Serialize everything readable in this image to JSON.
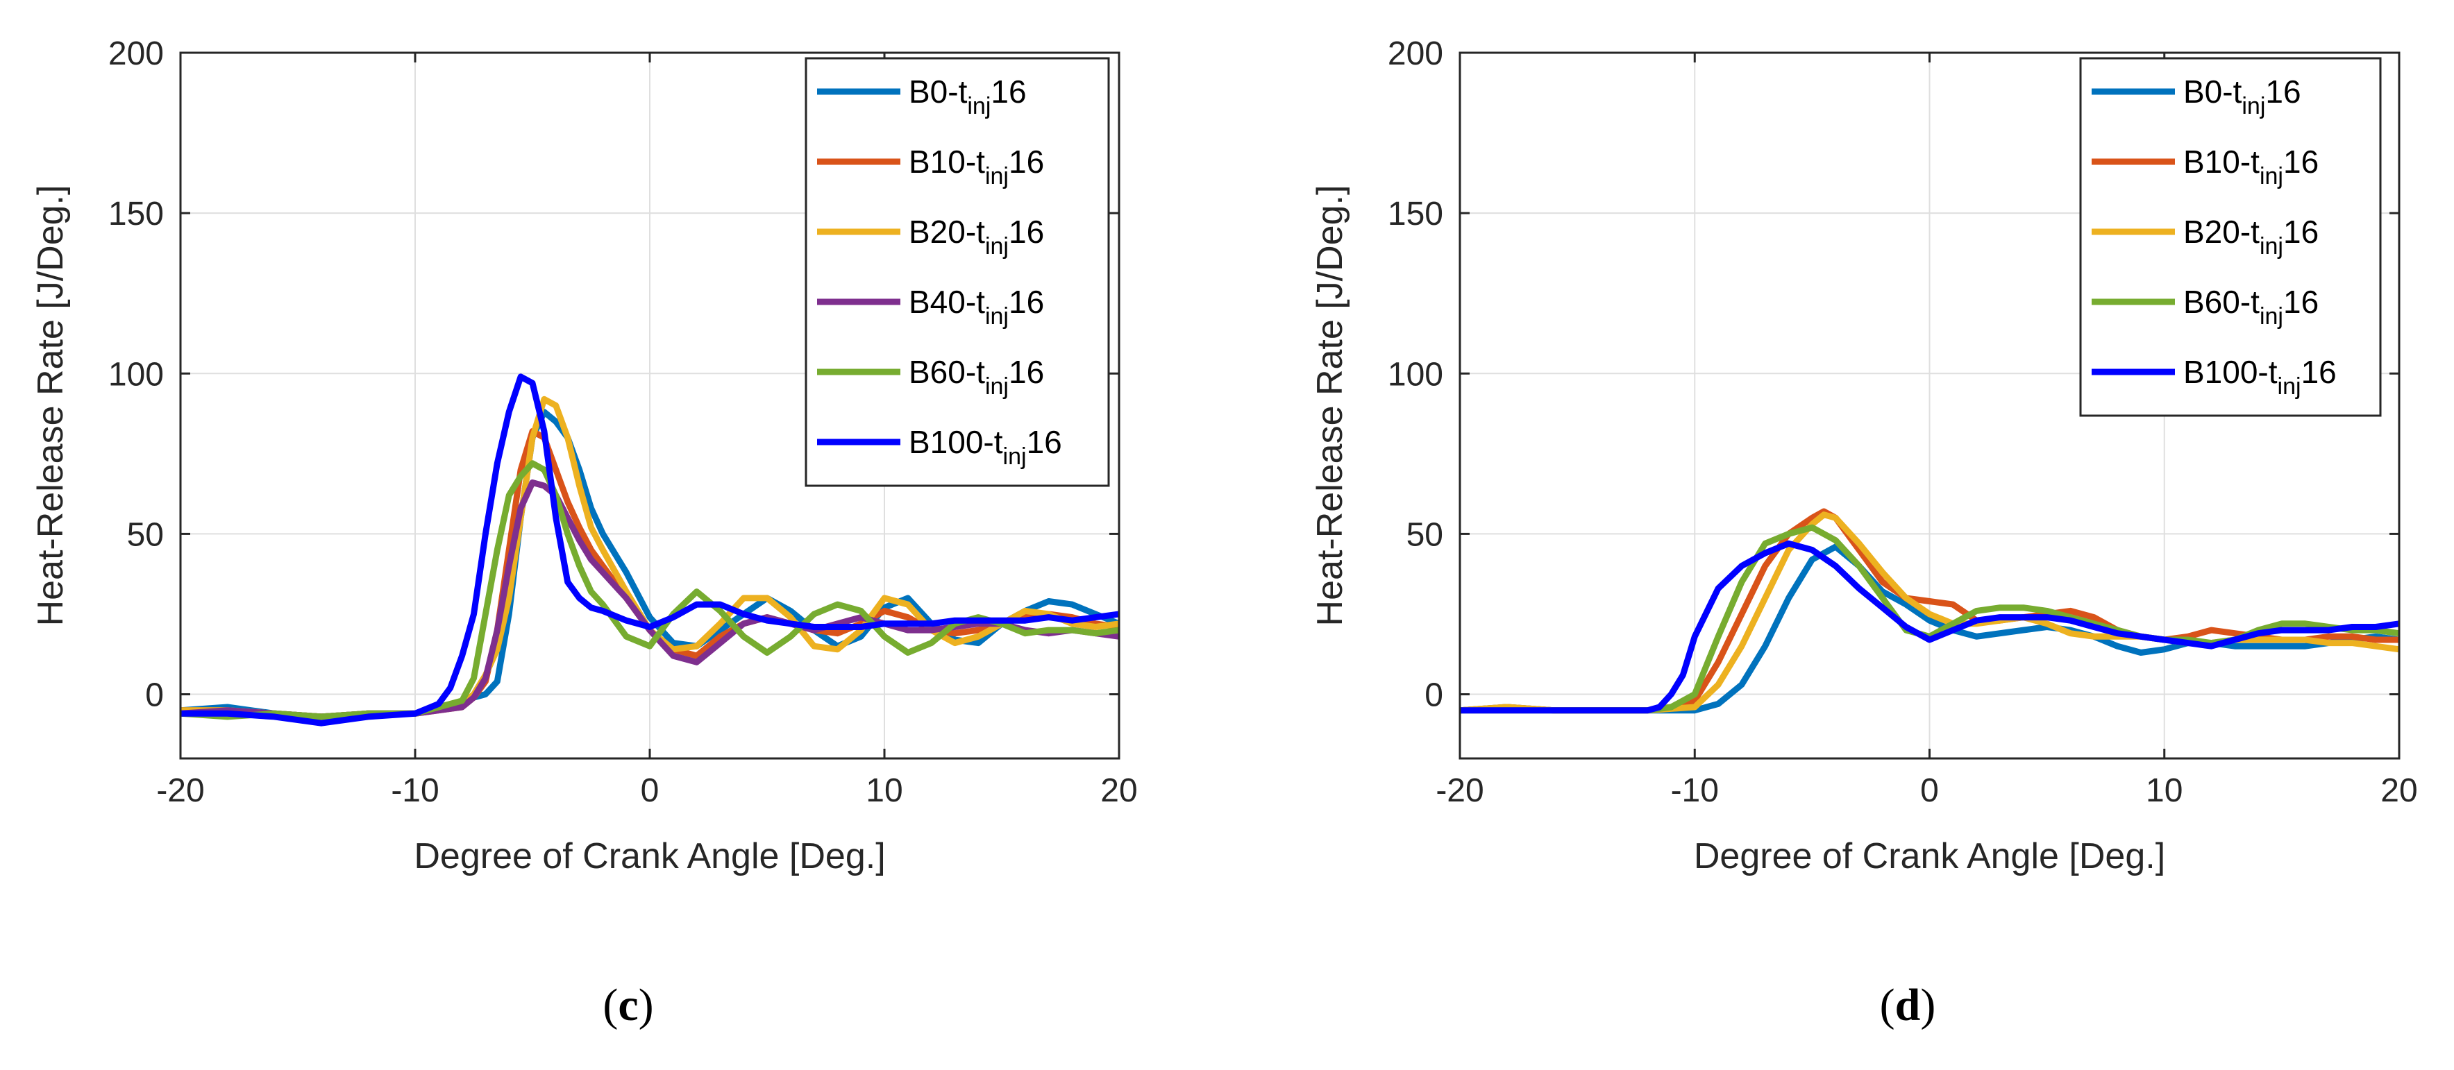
{
  "chart_data": [
    {
      "type": "line",
      "panel_label": "c",
      "xlabel": "Degree of Crank Angle [Deg.]",
      "ylabel": "Heat-Release Rate [J/Deg.]",
      "xlim": [
        -20,
        20
      ],
      "ylim": [
        -20,
        200
      ],
      "xticks": [
        -20,
        -10,
        0,
        10,
        20
      ],
      "yticks": [
        0,
        50,
        100,
        150,
        200
      ],
      "grid": true,
      "legend_position": "top-right",
      "series": [
        {
          "name": "B0-tinj16",
          "label_main": "B0-t",
          "label_sub": "inj",
          "label_tail": "16",
          "color": "#0072BD",
          "x": [
            -20,
            -18,
            -16,
            -14,
            -12,
            -10,
            -8,
            -7.5,
            -7,
            -6.5,
            -6,
            -5.5,
            -5,
            -4.5,
            -4,
            -3.5,
            -3,
            -2.5,
            -2,
            -1,
            0,
            1,
            2,
            3,
            4,
            5,
            6,
            7,
            8,
            9,
            10,
            11,
            12,
            13,
            14,
            15,
            16,
            17,
            18,
            19,
            20
          ],
          "y": [
            -5,
            -4,
            -6,
            -7,
            -6,
            -6,
            -3,
            -1,
            0,
            4,
            25,
            55,
            80,
            88,
            85,
            80,
            70,
            58,
            50,
            38,
            24,
            16,
            15,
            20,
            25,
            30,
            26,
            20,
            15,
            18,
            27,
            30,
            22,
            17,
            16,
            22,
            26,
            29,
            28,
            25,
            22
          ]
        },
        {
          "name": "B10-tinj16",
          "label_main": "B10-t",
          "label_sub": "inj",
          "label_tail": "16",
          "color": "#D95319",
          "x": [
            -20,
            -18,
            -16,
            -14,
            -12,
            -10,
            -8,
            -7.5,
            -7,
            -6.5,
            -6,
            -5.5,
            -5,
            -4.5,
            -4,
            -3.5,
            -3,
            -2.5,
            -2,
            -1,
            0,
            1,
            2,
            3,
            4,
            5,
            6,
            7,
            8,
            9,
            10,
            11,
            12,
            13,
            14,
            15,
            16,
            17,
            18,
            19,
            20
          ],
          "y": [
            -5,
            -5,
            -6,
            -7,
            -6,
            -6,
            -4,
            -1,
            4,
            20,
            45,
            70,
            82,
            80,
            70,
            60,
            52,
            45,
            40,
            30,
            20,
            14,
            12,
            18,
            22,
            24,
            22,
            20,
            19,
            22,
            26,
            24,
            20,
            19,
            20,
            22,
            24,
            25,
            24,
            22,
            21
          ]
        },
        {
          "name": "B20-tinj16",
          "label_main": "B20-t",
          "label_sub": "inj",
          "label_tail": "16",
          "color": "#EDB120",
          "x": [
            -20,
            -18,
            -16,
            -14,
            -12,
            -10,
            -8,
            -7.5,
            -7,
            -6.5,
            -6,
            -5.5,
            -5,
            -4.5,
            -4,
            -3.5,
            -3,
            -2.5,
            -2,
            -1,
            0,
            1,
            2,
            3,
            4,
            5,
            6,
            7,
            8,
            9,
            10,
            11,
            12,
            13,
            14,
            15,
            16,
            17,
            18,
            19,
            20
          ],
          "y": [
            -5,
            -5,
            -6,
            -7,
            -6,
            -6,
            -3,
            0,
            6,
            14,
            30,
            55,
            80,
            92,
            90,
            80,
            65,
            52,
            45,
            32,
            20,
            14,
            15,
            22,
            30,
            30,
            24,
            15,
            14,
            20,
            30,
            28,
            20,
            16,
            18,
            22,
            26,
            25,
            22,
            21,
            22
          ]
        },
        {
          "name": "B40-tinj16",
          "label_main": "B40-t",
          "label_sub": "inj",
          "label_tail": "16",
          "color": "#7E2F8E",
          "x": [
            -20,
            -18,
            -16,
            -14,
            -12,
            -10,
            -8,
            -7.5,
            -7,
            -6.5,
            -6,
            -5.5,
            -5,
            -4.5,
            -4,
            -3.5,
            -3,
            -2.5,
            -2,
            -1,
            0,
            1,
            2,
            3,
            4,
            5,
            6,
            7,
            8,
            9,
            10,
            11,
            12,
            13,
            14,
            15,
            16,
            17,
            18,
            19,
            20
          ],
          "y": [
            -6,
            -5,
            -6,
            -7,
            -6,
            -6,
            -4,
            -1,
            5,
            20,
            40,
            58,
            66,
            65,
            62,
            55,
            48,
            42,
            38,
            30,
            20,
            12,
            10,
            16,
            22,
            24,
            22,
            20,
            22,
            24,
            22,
            20,
            20,
            21,
            22,
            22,
            20,
            19,
            20,
            19,
            18
          ]
        },
        {
          "name": "B60-tinj16",
          "label_main": "B60-t",
          "label_sub": "inj",
          "label_tail": "16",
          "color": "#77AC30",
          "x": [
            -20,
            -18,
            -16,
            -14,
            -12,
            -10,
            -8,
            -7.5,
            -7,
            -6.5,
            -6,
            -5.5,
            -5,
            -4.5,
            -4,
            -3.5,
            -3,
            -2.5,
            -2,
            -1,
            0,
            1,
            2,
            3,
            4,
            5,
            6,
            7,
            8,
            9,
            10,
            11,
            12,
            13,
            14,
            15,
            16,
            17,
            18,
            19,
            20
          ],
          "y": [
            -6,
            -7,
            -6,
            -7,
            -6,
            -6,
            -2,
            5,
            25,
            45,
            62,
            68,
            72,
            70,
            62,
            50,
            40,
            32,
            28,
            18,
            15,
            25,
            32,
            26,
            18,
            13,
            18,
            25,
            28,
            26,
            18,
            13,
            16,
            22,
            24,
            22,
            19,
            20,
            20,
            19,
            20
          ]
        },
        {
          "name": "B100-tinj16",
          "label_main": "B100-t",
          "label_sub": "inj",
          "label_tail": "16",
          "color": "#0000FF",
          "x": [
            -20,
            -18,
            -16,
            -14,
            -12,
            -10,
            -9,
            -8.5,
            -8,
            -7.5,
            -7,
            -6.5,
            -6,
            -5.5,
            -5,
            -4.5,
            -4,
            -3.5,
            -3,
            -2.5,
            -2,
            -1,
            0,
            1,
            2,
            3,
            4,
            5,
            6,
            7,
            8,
            9,
            10,
            11,
            12,
            13,
            14,
            15,
            16,
            17,
            18,
            19,
            20
          ],
          "y": [
            -6,
            -6,
            -7,
            -9,
            -7,
            -6,
            -3,
            2,
            12,
            25,
            50,
            72,
            88,
            99,
            97,
            82,
            55,
            35,
            30,
            27,
            26,
            23,
            21,
            24,
            28,
            28,
            25,
            23,
            22,
            21,
            21,
            21,
            22,
            22,
            22,
            23,
            23,
            23,
            23,
            24,
            23,
            24,
            25
          ]
        }
      ]
    },
    {
      "type": "line",
      "panel_label": "d",
      "xlabel": "Degree of Crank Angle [Deg.]",
      "ylabel": "Heat-Release Rate [J/Deg.]",
      "xlim": [
        -20,
        20
      ],
      "ylim": [
        -20,
        200
      ],
      "xticks": [
        -20,
        -10,
        0,
        10,
        20
      ],
      "yticks": [
        0,
        50,
        100,
        150,
        200
      ],
      "grid": true,
      "legend_position": "top-right",
      "series": [
        {
          "name": "B0-tinj16",
          "label_main": "B0-t",
          "label_sub": "inj",
          "label_tail": "16",
          "color": "#0072BD",
          "x": [
            -20,
            -18,
            -16,
            -14,
            -12,
            -10,
            -9,
            -8,
            -7,
            -6,
            -5,
            -4,
            -3,
            -2,
            -1,
            0,
            1,
            2,
            3,
            4,
            5,
            6,
            7,
            8,
            9,
            10,
            11,
            12,
            13,
            14,
            15,
            16,
            17,
            18,
            19,
            20
          ],
          "y": [
            -5,
            -4,
            -5,
            -5,
            -5,
            -5,
            -3,
            3,
            15,
            30,
            42,
            46,
            40,
            32,
            28,
            23,
            20,
            18,
            19,
            20,
            21,
            20,
            18,
            15,
            13,
            14,
            16,
            16,
            15,
            15,
            15,
            15,
            16,
            17,
            18,
            17
          ]
        },
        {
          "name": "B10-tinj16",
          "label_main": "B10-t",
          "label_sub": "inj",
          "label_tail": "16",
          "color": "#D95319",
          "x": [
            -20,
            -18,
            -16,
            -14,
            -12,
            -11,
            -10,
            -9,
            -8,
            -7,
            -6,
            -5,
            -4.5,
            -4,
            -3,
            -2,
            -1,
            0,
            1,
            2,
            3,
            4,
            5,
            6,
            7,
            8,
            9,
            10,
            11,
            12,
            13,
            14,
            15,
            16,
            17,
            18,
            19,
            20
          ],
          "y": [
            -5,
            -4,
            -5,
            -5,
            -5,
            -4,
            -2,
            10,
            25,
            40,
            50,
            55,
            57,
            55,
            45,
            35,
            30,
            29,
            28,
            23,
            23,
            24,
            25,
            26,
            24,
            20,
            18,
            17,
            18,
            20,
            19,
            18,
            17,
            17,
            18,
            18,
            17,
            17
          ]
        },
        {
          "name": "B20-tinj16",
          "label_main": "B20-t",
          "label_sub": "inj",
          "label_tail": "16",
          "color": "#EDB120",
          "x": [
            -20,
            -18,
            -16,
            -14,
            -12,
            -10,
            -9,
            -8,
            -7,
            -6,
            -5,
            -4.5,
            -4,
            -3,
            -2,
            -1,
            0,
            1,
            2,
            3,
            4,
            5,
            6,
            7,
            8,
            9,
            10,
            11,
            12,
            13,
            14,
            15,
            16,
            17,
            18,
            19,
            20
          ],
          "y": [
            -5,
            -4,
            -5,
            -5,
            -5,
            -4,
            3,
            15,
            30,
            45,
            53,
            56,
            55,
            47,
            38,
            30,
            25,
            22,
            22,
            23,
            24,
            22,
            19,
            18,
            18,
            18,
            17,
            16,
            16,
            17,
            17,
            17,
            17,
            16,
            16,
            15,
            14
          ]
        },
        {
          "name": "B60-tinj16",
          "label_main": "B60-t",
          "label_sub": "inj",
          "label_tail": "16",
          "color": "#77AC30",
          "x": [
            -20,
            -18,
            -16,
            -14,
            -12,
            -11,
            -10,
            -9,
            -8,
            -7,
            -6,
            -5,
            -4,
            -3,
            -2,
            -1,
            0,
            1,
            2,
            3,
            4,
            5,
            6,
            7,
            8,
            9,
            10,
            11,
            12,
            13,
            14,
            15,
            16,
            17,
            18,
            19,
            20
          ],
          "y": [
            -5,
            -5,
            -5,
            -5,
            -5,
            -4,
            0,
            18,
            35,
            47,
            50,
            52,
            48,
            40,
            30,
            20,
            18,
            22,
            26,
            27,
            27,
            26,
            24,
            22,
            20,
            18,
            17,
            17,
            16,
            17,
            20,
            22,
            22,
            21,
            20,
            20,
            19
          ]
        },
        {
          "name": "B100-tinj16",
          "label_main": "B100-t",
          "label_sub": "inj",
          "label_tail": "16",
          "color": "#0000FF",
          "x": [
            -20,
            -18,
            -16,
            -14,
            -12,
            -11.5,
            -11,
            -10.5,
            -10,
            -9,
            -8,
            -7,
            -6,
            -5,
            -4,
            -3,
            -2,
            -1,
            0,
            1,
            2,
            3,
            4,
            5,
            6,
            7,
            8,
            9,
            10,
            11,
            12,
            13,
            14,
            15,
            16,
            17,
            18,
            19,
            20
          ],
          "y": [
            -5,
            -5,
            -5,
            -5,
            -5,
            -4,
            0,
            6,
            18,
            33,
            40,
            44,
            47,
            45,
            40,
            33,
            27,
            21,
            17,
            20,
            23,
            24,
            24,
            24,
            23,
            21,
            19,
            18,
            17,
            16,
            15,
            17,
            19,
            20,
            20,
            20,
            21,
            21,
            22
          ]
        }
      ]
    }
  ]
}
